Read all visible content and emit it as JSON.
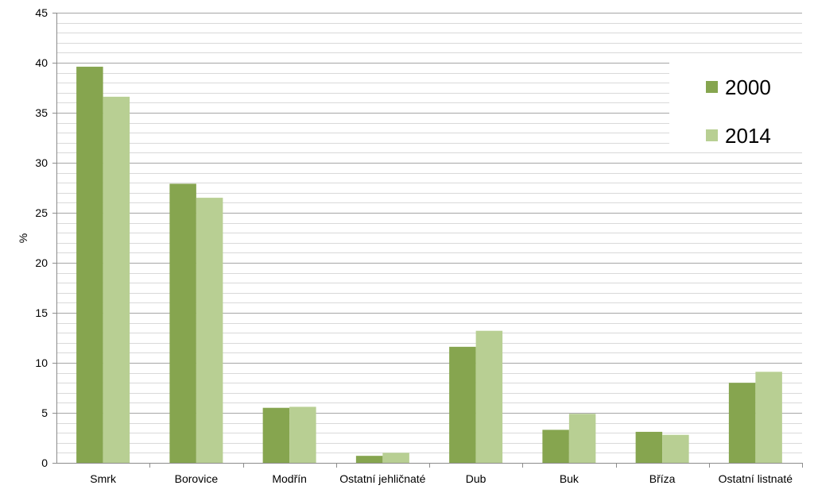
{
  "chart_data": {
    "type": "bar",
    "title": "",
    "xlabel": "",
    "ylabel": "%",
    "ylim": [
      0,
      45
    ],
    "major_tick_step": 5,
    "minor_gridline_step": 1,
    "grid": true,
    "legend_position": "top-right",
    "categories": [
      "Smrk",
      "Borovice",
      "Modřín",
      "Ostatní jehličnaté",
      "Dub",
      "Buk",
      "Bříza",
      "Ostatní listnaté"
    ],
    "series": [
      {
        "name": "2000",
        "color": "#86a54f",
        "values": [
          39.6,
          27.9,
          5.5,
          0.7,
          11.6,
          3.3,
          3.1,
          8.0
        ]
      },
      {
        "name": "2014",
        "color": "#b8cf93",
        "values": [
          36.6,
          26.5,
          5.6,
          1.0,
          13.2,
          4.9,
          2.8,
          9.1
        ]
      }
    ]
  }
}
